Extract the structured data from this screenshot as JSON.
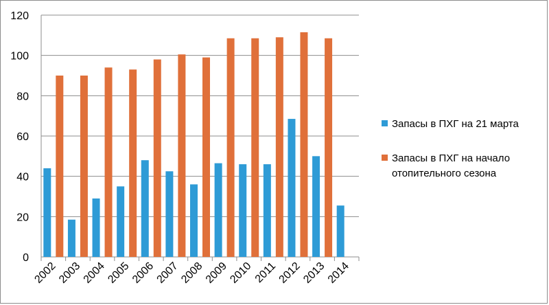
{
  "chart_data": {
    "type": "bar",
    "categories": [
      "2002",
      "2003",
      "2004",
      "2005",
      "2006",
      "2007",
      "2008",
      "2009",
      "2010",
      "2011",
      "2012",
      "2013",
      "2014"
    ],
    "series": [
      {
        "name": "Запасы в ПХГ на 21 марта",
        "color": "#2e9bd6",
        "values": [
          44,
          18.5,
          29,
          35,
          48,
          42.5,
          36,
          46.5,
          46,
          46,
          68.5,
          50,
          25.5
        ]
      },
      {
        "name": "Запасы в ПХГ на начало отопительного сезона",
        "color": "#e0703a",
        "values": [
          90,
          90,
          94,
          93,
          98,
          100.5,
          99,
          108.5,
          108.5,
          109,
          111.5,
          108.5,
          null
        ]
      }
    ],
    "ylim": [
      0,
      120
    ],
    "yticks": [
      0,
      20,
      40,
      60,
      80,
      100,
      120
    ],
    "grid": true,
    "legend_position": "right",
    "title": "",
    "xlabel": "",
    "ylabel": ""
  },
  "legend": {
    "series_1_label": "Запасы в ПХГ на 21 марта",
    "series_2_label": "Запасы в ПХГ на начало отопительного сезона"
  }
}
